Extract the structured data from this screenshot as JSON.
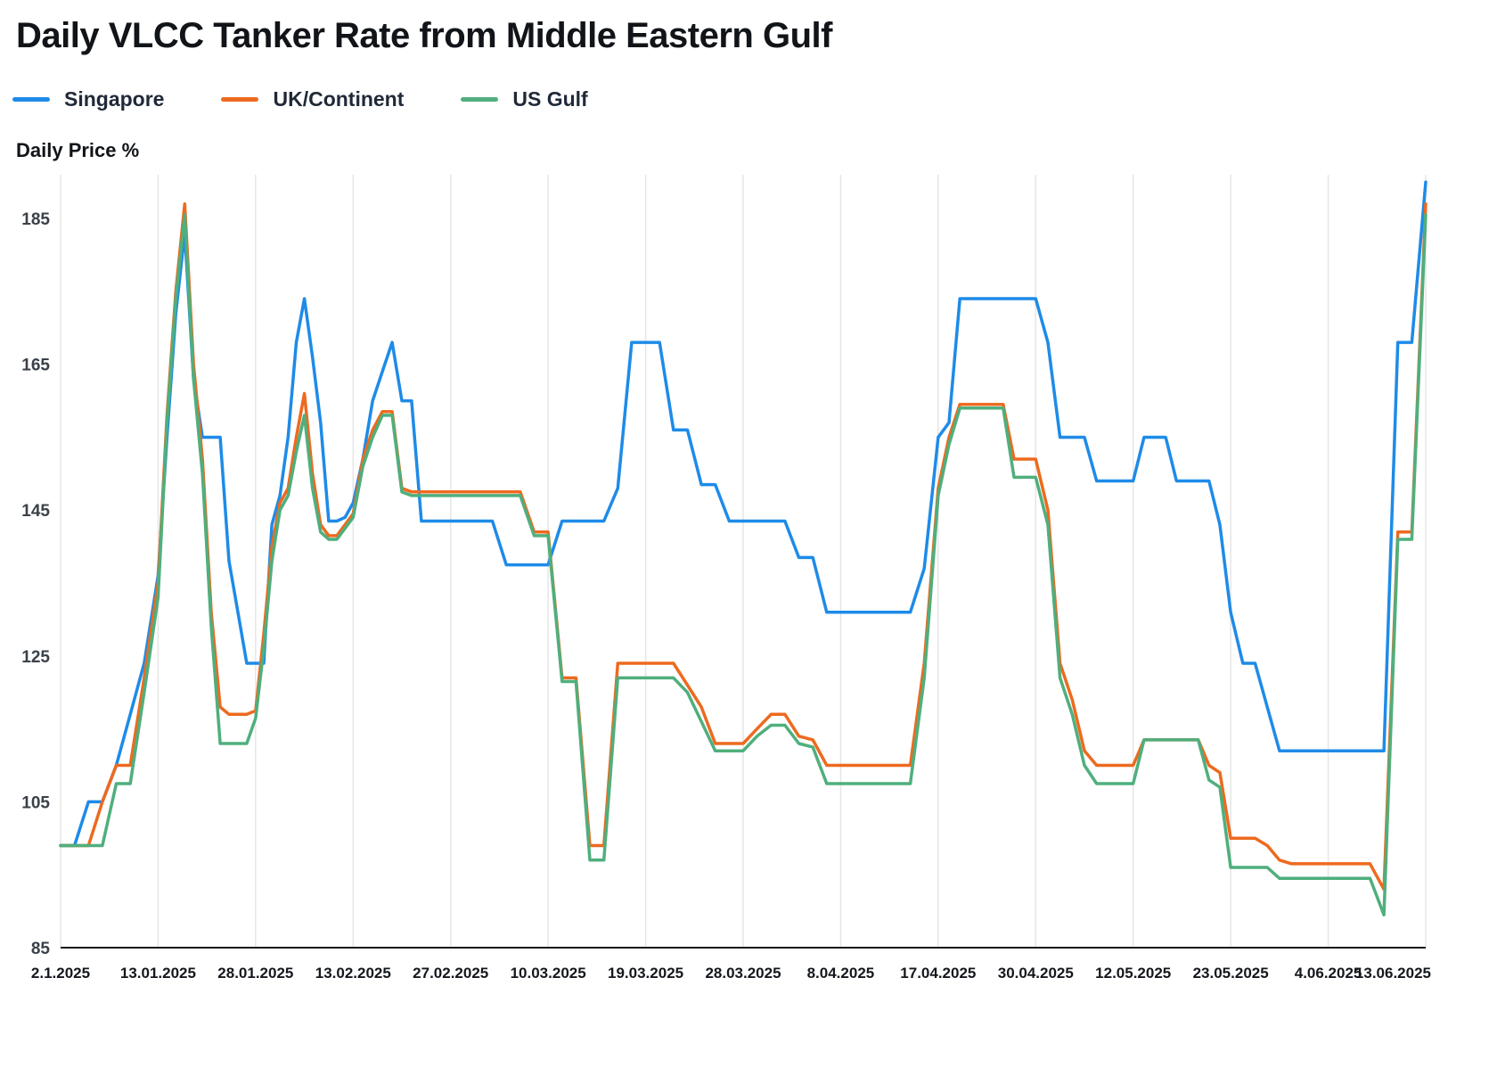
{
  "title": "Daily VLCC Tanker Rate from Middle Eastern Gulf",
  "y_axis_label": "Daily Price %",
  "chart_data": {
    "type": "line",
    "x_unit": "trading day index (daily rates, 2.1.2025 - 13.06.2025)",
    "x_tick_labels": [
      "2.1.2025",
      "13.01.2025",
      "28.01.2025",
      "13.02.2025",
      "27.02.2025",
      "10.03.2025",
      "19.03.2025",
      "28.03.2025",
      "8.04.2025",
      "17.04.2025",
      "30.04.2025",
      "12.05.2025",
      "23.05.2025",
      "4.06.2025",
      "13.06.2025"
    ],
    "x_tick_indices": [
      0,
      7,
      18,
      30,
      40,
      47,
      54,
      61,
      68,
      75,
      84,
      92,
      101,
      109,
      116
    ],
    "y_ticks": [
      85,
      105,
      125,
      145,
      165,
      185
    ],
    "ylim": [
      85,
      191
    ],
    "grid": "vertical-only",
    "legend_position": "top-left",
    "background": "#ffffff",
    "gridline_color": "#e6e6e6",
    "axis_line_color": "#1a1a1a",
    "series": [
      {
        "name": "Singapore",
        "color": "#1e8be8",
        "values": [
          99,
          99,
          105,
          105,
          110,
          117,
          124,
          136,
          155,
          172,
          183,
          163,
          155,
          155,
          155,
          138,
          131,
          124,
          124,
          124,
          143,
          147,
          155,
          168,
          174,
          166,
          157,
          143.5,
          143.5,
          144,
          146,
          152,
          160,
          164,
          168,
          160,
          160,
          143.5,
          143.5,
          143.5,
          143.5,
          143.5,
          143.5,
          143.5,
          137.5,
          137.5,
          137.5,
          137.5,
          143.5,
          143.5,
          143.5,
          143.5,
          148,
          168,
          168,
          168,
          156,
          156,
          148.5,
          148.5,
          143.5,
          143.5,
          143.5,
          143.5,
          143.5,
          138.5,
          138.5,
          131,
          131,
          131,
          131,
          131,
          131,
          131,
          137,
          155,
          157,
          174,
          174,
          174,
          174,
          174,
          174,
          174,
          174,
          168,
          155,
          155,
          155,
          149,
          149,
          149,
          149,
          155,
          155,
          155,
          149,
          149,
          149,
          149,
          143,
          131,
          124,
          124,
          118,
          112,
          112,
          112,
          112,
          112,
          112,
          112,
          112,
          112,
          168,
          168,
          190
        ]
      },
      {
        "name": "UK/Continent",
        "color": "#ed6a1f",
        "values": [
          99,
          99,
          99,
          105,
          110,
          110,
          122,
          135,
          158,
          175,
          187,
          165,
          152,
          131,
          118,
          117,
          117,
          117,
          117.5,
          128,
          140,
          146,
          148,
          155,
          161,
          150,
          143,
          141.5,
          141.5,
          143,
          144.5,
          152,
          156,
          158.5,
          158.5,
          148,
          147.5,
          147.5,
          147.5,
          147.5,
          147.5,
          147.5,
          147.5,
          147.5,
          147.5,
          147.5,
          142,
          142,
          122,
          122,
          99,
          99,
          124,
          124,
          124,
          124,
          124,
          121,
          118,
          113,
          113,
          113,
          115,
          117,
          117,
          114,
          113.5,
          110,
          110,
          110,
          110,
          110,
          110,
          110,
          124,
          148,
          155,
          159.5,
          159.5,
          159.5,
          159.5,
          159.5,
          152,
          152,
          152,
          145,
          124,
          119,
          112,
          110,
          110,
          110,
          110,
          113.5,
          113.5,
          113.5,
          113.5,
          113.5,
          113.5,
          110,
          109,
          100,
          100,
          100,
          99,
          97,
          96.5,
          96.5,
          96.5,
          96.5,
          96.5,
          96.5,
          96.5,
          93,
          142,
          142,
          187
        ]
      },
      {
        "name": "US Gulf",
        "color": "#4faf7d",
        "values": [
          99,
          99,
          99,
          99,
          107.5,
          107.5,
          120,
          133,
          157,
          174,
          185.5,
          163,
          150,
          129,
          113,
          113,
          113,
          113,
          116.5,
          126,
          138,
          145,
          147,
          153,
          158,
          148,
          142,
          141,
          141,
          142.5,
          144,
          151,
          155,
          158,
          158,
          147.5,
          147,
          147,
          147,
          147,
          147,
          147,
          147,
          147,
          147,
          147,
          141.5,
          141.5,
          121.5,
          121.5,
          97,
          97,
          122,
          122,
          122,
          122,
          122,
          120,
          116,
          112,
          112,
          112,
          114,
          115.5,
          115.5,
          113,
          112.5,
          107.5,
          107.5,
          107.5,
          107.5,
          107.5,
          107.5,
          107.5,
          122,
          147,
          154,
          159,
          159,
          159,
          159,
          159,
          149.5,
          149.5,
          149.5,
          143,
          122,
          117,
          110,
          107.5,
          107.5,
          107.5,
          107.5,
          113.5,
          113.5,
          113.5,
          113.5,
          113.5,
          113.5,
          108,
          107,
          96,
          96,
          96,
          96,
          94.5,
          94.5,
          94.5,
          94.5,
          94.5,
          94.5,
          94.5,
          94.5,
          89.5,
          141,
          141,
          185.5
        ]
      }
    ]
  }
}
